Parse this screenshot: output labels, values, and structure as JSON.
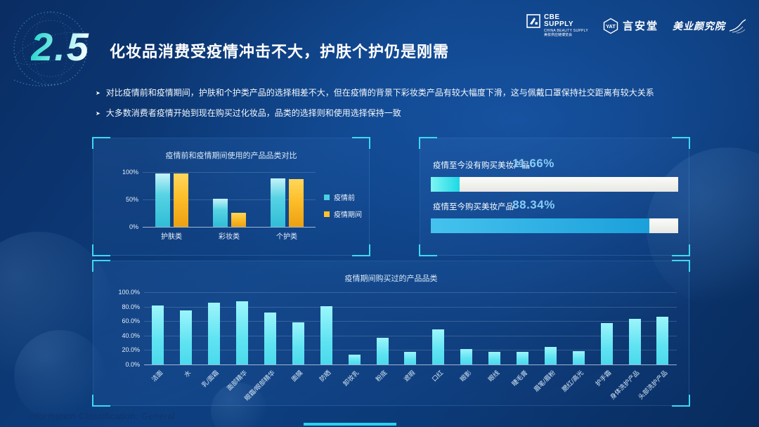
{
  "slide": {
    "section_number": "2.5",
    "title": "化妆品消费受疫情冲击不大，护肤个护仍是刚需",
    "bullets": [
      "对比疫情前和疫情期间，护肤和个护类产品的选择相差不大，但在疫情的背景下彩妆类产品有较大幅度下滑，这与佩戴口罩保持社交距离有较大关系",
      "大多数消费者疫情开始到现在购买过化妆品，品类的选择则和使用选择保持一致"
    ],
    "footer": "Information Classification: General"
  },
  "logos": {
    "cbe": {
      "line1": "CBE",
      "line2": "SUPPLY",
      "sub1": "CHINA BEAUTY SUPPLY",
      "sub2": "美妆供应链博览会"
    },
    "yat": {
      "badge": "YAT",
      "name": "言安堂"
    },
    "beauty_institute": {
      "name": "美业颜究院"
    }
  },
  "colors": {
    "background": "#0c3a78",
    "accent_cyan": "#3fd8f2",
    "bar_pre": "#49cfe2",
    "bar_during": "#ffc22e",
    "hbar_no_fill": "#2fe0e8",
    "hbar_yes_fill": "#29abe2",
    "bottom_bar": "#6feef6",
    "value_text": "#85ccf4"
  },
  "chart_data": [
    {
      "id": "usage-compare",
      "type": "bar",
      "title": "疫情前和疫情期间使用的产品品类对比",
      "categories": [
        "护肤类",
        "彩妆类",
        "个护类"
      ],
      "series": [
        {
          "name": "疫情前",
          "color": "#49cfe2",
          "values": [
            98,
            51,
            88
          ]
        },
        {
          "name": "疫情期间",
          "color": "#ffc22e",
          "values": [
            98,
            26,
            87
          ]
        }
      ],
      "y_ticks": [
        "100%",
        "50%",
        "0%"
      ],
      "ylim": [
        0,
        100
      ],
      "legend_position": "right",
      "grid": true
    },
    {
      "id": "purchase-split",
      "type": "hbar",
      "rows": [
        {
          "label": "疫情至今没有购买美妆产品",
          "value": 11.66,
          "display": "11.66%",
          "fill": "#2fe0e8"
        },
        {
          "label": "疫情至今购买美妆产品",
          "value": 88.34,
          "display": "88.34%",
          "fill": "#29abe2"
        }
      ],
      "xlim": [
        0,
        100
      ],
      "track_color": "#f0f0ec"
    },
    {
      "id": "purchased-categories",
      "type": "bar",
      "title": "疫情期间购买过的产品品类",
      "categories": [
        "洁面",
        "水",
        "乳/面霜",
        "面部精华",
        "眼霜/眼部精华",
        "面膜",
        "防晒",
        "卸妆乳",
        "粉底",
        "遮瑕",
        "口红",
        "眼影",
        "眼线",
        "睫毛膏",
        "眉笔/眉粉",
        "腮红/高光",
        "护手霜",
        "身体洗护产品",
        "头部洗护产品"
      ],
      "values": [
        82,
        75,
        85,
        87,
        72,
        58,
        81,
        14,
        37,
        17,
        49,
        21,
        17,
        17,
        24,
        18,
        57,
        63,
        66
      ],
      "y_ticks": [
        "100.0%",
        "80.0%",
        "60.0%",
        "40.0%",
        "20.0%",
        "0.0%"
      ],
      "ylim": [
        0,
        100
      ],
      "bar_color": "#6feef6",
      "grid": true
    }
  ]
}
